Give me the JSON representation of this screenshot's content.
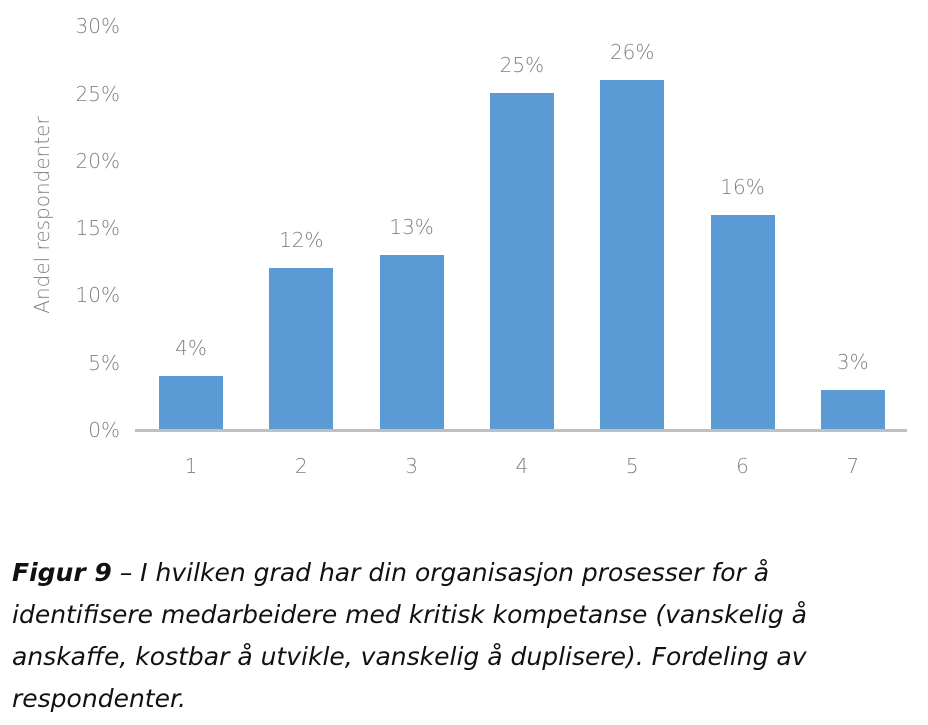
{
  "chart_data": {
    "type": "bar",
    "title": "",
    "xlabel": "",
    "ylabel": "Andel respondenter",
    "categories": [
      "1",
      "2",
      "3",
      "4",
      "5",
      "6",
      "7"
    ],
    "values": [
      4,
      12,
      13,
      25,
      26,
      16,
      3
    ],
    "value_labels": [
      "4%",
      "12%",
      "13%",
      "25%",
      "26%",
      "16%",
      "3%"
    ],
    "yticks": [
      "0%",
      "5%",
      "10%",
      "15%",
      "20%",
      "25%",
      "30%"
    ],
    "ylim": [
      0,
      30
    ],
    "grid": false,
    "legend": null,
    "bar_color": "#5b9bd5"
  },
  "caption": {
    "figure_label": "Figur 9",
    "text": " – I hvilken grad har din organisasjon prosesser for å identifisere medarbeidere med kritisk kompetanse (vanskelig å anskaffe, kostbar å utvikle, vanskelig å duplisere). Fordeling av respondenter."
  }
}
